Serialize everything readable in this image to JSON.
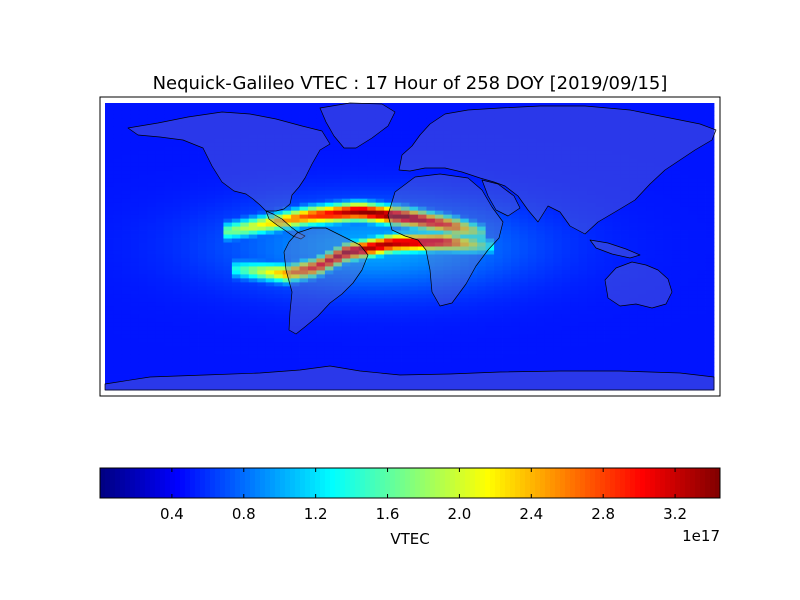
{
  "chart_data": [
    {
      "type": "heatmap",
      "title": "Nequick-Galileo VTEC : 17 Hour of 258 DOY [2019/09/15]",
      "projection": "equirectangular world map with coastlines and country borders",
      "xlim": [
        -180,
        180
      ],
      "ylim": [
        -90,
        90
      ],
      "grid": false,
      "colormap": "jet",
      "value_range": [
        0,
        3.45e+17
      ],
      "features": [
        {
          "description": "northern equatorial anomaly crest",
          "points": [
            [
              -110,
              9,
              1.6e+17
            ],
            [
              -60,
              19,
              2.8e+17
            ],
            [
              -30,
              22,
              3.4e+17
            ],
            [
              0,
              18,
              3.4e+17
            ],
            [
              25,
              13,
              2.8e+17
            ],
            [
              45,
              8,
              1.4e+17
            ]
          ]
        },
        {
          "description": "southern equatorial anomaly crest",
          "points": [
            [
              -105,
              -14,
              1.3e+17
            ],
            [
              -72,
              -17,
              2.5e+17
            ],
            [
              -55,
              -13,
              3e+17
            ],
            [
              -38,
              -4,
              3.3e+17
            ],
            [
              -10,
              2,
              3.3e+17
            ],
            [
              20,
              3,
              3.1e+17
            ],
            [
              50,
              0,
              1.2e+17
            ]
          ]
        }
      ],
      "background_value": 5e+16
    },
    {
      "type": "colorbar",
      "label": "VTEC",
      "ticks": [
        0.4,
        0.8,
        1.2,
        1.6,
        2.0,
        2.4,
        2.8,
        3.2
      ],
      "tick_labels": [
        "0.4",
        "0.8",
        "1.2",
        "1.6",
        "2.0",
        "2.4",
        "2.8",
        "3.2"
      ],
      "range": [
        0,
        3.45
      ],
      "offset_text": "1e17"
    }
  ]
}
